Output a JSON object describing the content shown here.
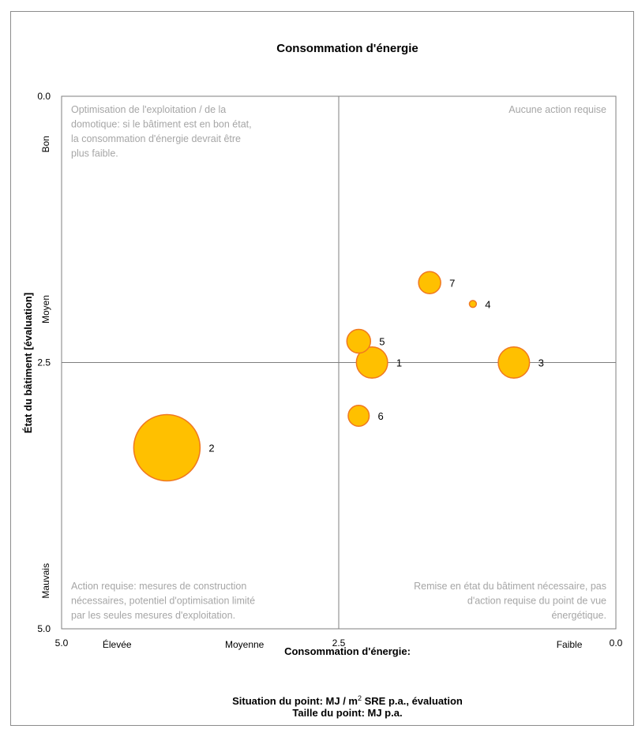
{
  "chart_data": {
    "type": "scatter",
    "title": "Consommation d'énergie",
    "xlabel": "Consommation d'énergie:",
    "footer_line1_prefix": "Situation du point: MJ / m",
    "footer_line1_sup": "2",
    "footer_line1_suffix": " SRE p.a., évaluation",
    "footer_line2": "Taille du point: MJ p.a.",
    "ylabel": "État du bâtiment [évaluation]",
    "xlim": [
      5.0,
      0.0
    ],
    "ylim": [
      0.0,
      5.0
    ],
    "x_reversed": true,
    "y_reversed": true,
    "x_ticks": [
      "5.0",
      "2.5",
      "0.0"
    ],
    "x_tick_values": [
      5.0,
      2.5,
      0.0
    ],
    "y_ticks": [
      "0.0",
      "2.5",
      "5.0"
    ],
    "y_tick_values": [
      0.0,
      2.5,
      5.0
    ],
    "x_qualitative": [
      {
        "label": "Élevée",
        "x": 4.5
      },
      {
        "label": "Moyenne",
        "x": 3.35
      },
      {
        "label": "Faible",
        "x": 0.42
      }
    ],
    "y_qualitative": [
      {
        "label": "Bon",
        "y": 0.45
      },
      {
        "label": "Moyen",
        "y": 2.0
      },
      {
        "label": "Mauvais",
        "y": 4.55
      }
    ],
    "divider_x": 2.5,
    "divider_y": 2.5,
    "quadrant_notes": {
      "top_left": [
        "Optimisation de l'exploitation / de la",
        "domotique: si le bâtiment est en bon état,",
        "la consommation d'énergie devrait être",
        "plus faible."
      ],
      "top_right": [
        "Aucune action requise"
      ],
      "bottom_left": [
        "Action requise: mesures de construction",
        "nécessaires, potentiel d'optimisation limité",
        "par les seules mesures d'exploitation."
      ],
      "bottom_right": [
        "Remise en état du bâtiment nécessaire, pas",
        "d'action requise du point de vue",
        "énergétique."
      ]
    },
    "points": [
      {
        "label": "1",
        "x": 2.2,
        "y": 2.5,
        "size": 400
      },
      {
        "label": "2",
        "x": 4.05,
        "y": 3.3,
        "size": 1800
      },
      {
        "label": "3",
        "x": 0.92,
        "y": 2.5,
        "size": 400
      },
      {
        "label": "4",
        "x": 1.29,
        "y": 1.95,
        "size": 20
      },
      {
        "label": "5",
        "x": 2.32,
        "y": 2.3,
        "size": 230
      },
      {
        "label": "6",
        "x": 2.32,
        "y": 3.0,
        "size": 180
      },
      {
        "label": "7",
        "x": 1.68,
        "y": 1.75,
        "size": 200
      }
    ],
    "colors": {
      "fill": "#ffc000",
      "stroke": "#f07820",
      "divider": "#7f7f7f",
      "note": "#a6a6a6"
    }
  }
}
